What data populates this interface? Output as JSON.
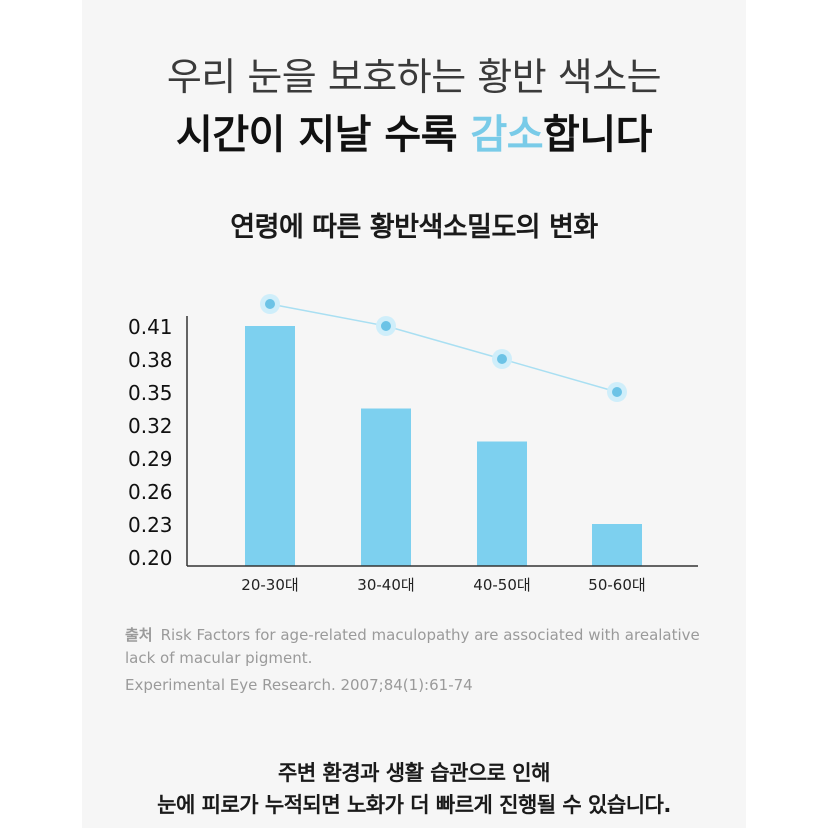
{
  "header": {
    "line1": "우리 눈을 보호하는 황반 색소는",
    "line2_prefix": "시간이 지날 수록 ",
    "line2_accent": "감소",
    "line2_suffix": "합니다"
  },
  "chart_data": {
    "type": "bar",
    "title": "연령에 따른 황반색소밀도의 변화",
    "categories": [
      "20-30대",
      "30-40대",
      "40-50대",
      "50-60대"
    ],
    "values": [
      0.41,
      0.335,
      0.305,
      0.23
    ],
    "line_values": [
      0.43,
      0.41,
      0.38,
      0.35
    ],
    "yticks": [
      "0.41",
      "0.38",
      "0.35",
      "0.32",
      "0.29",
      "0.26",
      "0.23",
      "0.20"
    ],
    "ylim": [
      0.2,
      0.41
    ],
    "grid": false,
    "bar_color": "#7dd0ef",
    "line_color": "#a9dff2"
  },
  "source": {
    "label": "출처",
    "line1": "Risk Factors for age-related maculopathy are associated with arealative",
    "line2": "lack of macular pigment.",
    "line3": "Experimental Eye Research. 2007;84(1):61-74"
  },
  "footer": {
    "line1": "주변 환경과 생활 습관으로 인해",
    "line2": "눈에 피로가 누적되면 노화가 더 빠르게 진행될 수 있습니다."
  }
}
